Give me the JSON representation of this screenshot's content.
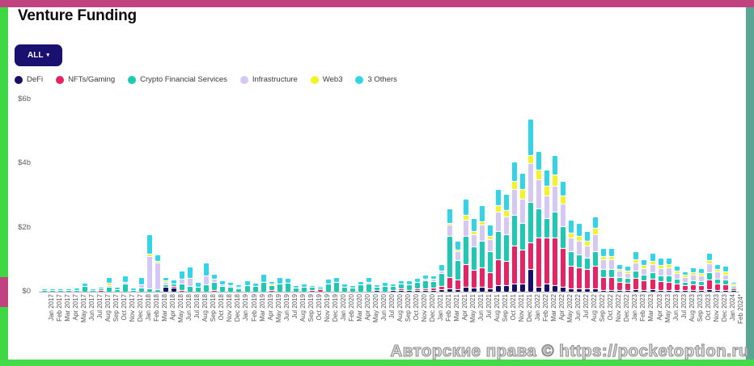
{
  "header": {
    "title": "Venture Funding"
  },
  "filter_button": {
    "label": "ALL",
    "caret": "▾"
  },
  "legend": {
    "items": [
      {
        "label": "DeFi",
        "color": "#171066"
      },
      {
        "label": "NFTs/Gaming",
        "color": "#e62365"
      },
      {
        "label": "Crypto Financial Services",
        "color": "#1ec9b3"
      },
      {
        "label": "Infrastructure",
        "color": "#d5c8f2"
      },
      {
        "label": "Web3",
        "color": "#f4f327"
      },
      {
        "label": "3 Others",
        "color": "#33d4e8"
      }
    ]
  },
  "watermark": {
    "text": "Авторские права © https://pocketoption.ru"
  },
  "frame_colors": {
    "top": "#c04380",
    "left": "#3fd743",
    "right": "#5aa593",
    "bottom": "#44da4a"
  },
  "chart_data": {
    "type": "bar",
    "stacked": true,
    "title": "Venture Funding",
    "unit": "billions USD",
    "xlabel": "",
    "ylabel": "",
    "ylim": [
      0,
      6
    ],
    "grid": false,
    "legend_position": "top",
    "y_ticks": [
      "$0",
      "$2b",
      "$4b",
      "$6b"
    ],
    "y_tick_values": [
      0,
      2,
      4,
      6
    ],
    "categories": [
      "Jan 2017",
      "Feb 2017",
      "Mar 2017",
      "Apr 2017",
      "May 2017",
      "Jun 2017",
      "Jul 2017",
      "Aug 2017",
      "Sep 2017",
      "Oct 2017",
      "Nov 2017",
      "Dec 2017",
      "Jan 2018",
      "Feb 2018",
      "Mar 2018",
      "Apr 2018",
      "May 2018",
      "Jun 2018",
      "Jul 2018",
      "Aug 2018",
      "Sep 2018",
      "Oct 2018",
      "Nov 2018",
      "Dec 2018",
      "Jan 2019",
      "Feb 2019",
      "Mar 2019",
      "Apr 2019",
      "May 2019",
      "Jun 2019",
      "Jul 2019",
      "Aug 2019",
      "Sep 2019",
      "Oct 2019",
      "Nov 2019",
      "Dec 2019",
      "Jan 2020",
      "Feb 2020",
      "Mar 2020",
      "Apr 2020",
      "May 2020",
      "Jun 2020",
      "Jul 2020",
      "Aug 2020",
      "Sep 2020",
      "Oct 2020",
      "Nov 2020",
      "Dec 2020",
      "Jan 2021",
      "Feb 2021",
      "Mar 2021",
      "Apr 2021",
      "May 2021",
      "Jun 2021",
      "Jul 2021",
      "Aug 2021",
      "Sep 2021",
      "Oct 2021",
      "Nov 2021",
      "Dec 2021",
      "Jan 2022",
      "Feb 2022",
      "Mar 2022",
      "Apr 2022",
      "May 2022",
      "Jun 2022",
      "Jul 2022",
      "Aug 2022",
      "Sep 2022",
      "Oct 2022",
      "Nov 2022",
      "Dec 2022",
      "Jan 2023",
      "Feb 2023",
      "Mar 2023",
      "Apr 2023",
      "May 2023",
      "Jun 2023",
      "Jul 2023",
      "Aug 2023",
      "Sep 2023",
      "Oct 2023",
      "Nov 2023",
      "Dec 2023",
      "Jan 2024",
      "Feb 2024*"
    ],
    "series": [
      {
        "name": "DeFi",
        "color": "#171066",
        "values": [
          0,
          0,
          0,
          0,
          0,
          0,
          0,
          0,
          0,
          0,
          0,
          0,
          0,
          0,
          0,
          0.15,
          0.12,
          0,
          0,
          0,
          0,
          0,
          0,
          0,
          0,
          0,
          0,
          0,
          0,
          0,
          0,
          0,
          0,
          0,
          0,
          0,
          0,
          0,
          0,
          0,
          0,
          0.03,
          0,
          0.05,
          0.05,
          0.05,
          0.05,
          0.05,
          0.06,
          0.08,
          0.1,
          0.08,
          0.15,
          0.12,
          0.15,
          0.1,
          0.2,
          0.2,
          0.25,
          0.25,
          0.7,
          0.15,
          0.25,
          0.2,
          0.15,
          0.1,
          0.1,
          0.1,
          0.1,
          0.05,
          0.05,
          0.05,
          0.05,
          0.08,
          0.05,
          0.08,
          0.05,
          0.05,
          0.05,
          0.03,
          0.05,
          0.03,
          0.08,
          0.05,
          0.05,
          0.05
        ]
      },
      {
        "name": "NFTs/Gaming",
        "color": "#e62365",
        "values": [
          0,
          0,
          0,
          0,
          0,
          0,
          0,
          0.06,
          0,
          0,
          0,
          0,
          0,
          0,
          0,
          0,
          0.03,
          0.05,
          0,
          0,
          0,
          0.05,
          0,
          0,
          0,
          0,
          0,
          0,
          0.03,
          0,
          0,
          0,
          0,
          0.04,
          0.08,
          0,
          0,
          0,
          0,
          0,
          0,
          0,
          0,
          0,
          0.05,
          0,
          0.03,
          0.03,
          0.06,
          0.1,
          0.35,
          0.3,
          0.7,
          0.55,
          0.6,
          0.5,
          0.8,
          0.75,
          1.2,
          1.05,
          0.85,
          1.55,
          1.45,
          1.5,
          1.2,
          0.7,
          0.65,
          0.6,
          0.7,
          0.4,
          0.4,
          0.25,
          0.22,
          0.35,
          0.3,
          0.32,
          0.28,
          0.25,
          0.2,
          0.15,
          0.18,
          0.15,
          0.3,
          0.2,
          0.18,
          0.05
        ]
      },
      {
        "name": "Crypto Financial Services",
        "color": "#1ec9b3",
        "values": [
          0.01,
          0.01,
          0.02,
          0.02,
          0.03,
          0.18,
          0.06,
          0.03,
          0.15,
          0.08,
          0.25,
          0.06,
          0.12,
          0.1,
          0.08,
          0.08,
          0.08,
          0.2,
          0.18,
          0.15,
          0.22,
          0.25,
          0.18,
          0.15,
          0.1,
          0.2,
          0.18,
          0.3,
          0.15,
          0.25,
          0.28,
          0.12,
          0.15,
          0.1,
          0.04,
          0.25,
          0.3,
          0.15,
          0.12,
          0.22,
          0.25,
          0.1,
          0.18,
          0.12,
          0.15,
          0.18,
          0.2,
          0.25,
          0.22,
          0.4,
          1.3,
          0.6,
          0.9,
          0.75,
          0.85,
          0.65,
          0.9,
          0.85,
          0.95,
          0.85,
          1.25,
          0.9,
          0.6,
          0.8,
          0.7,
          0.45,
          0.4,
          0.35,
          0.45,
          0.25,
          0.25,
          0.15,
          0.15,
          0.22,
          0.18,
          0.2,
          0.18,
          0.2,
          0.15,
          0.1,
          0.12,
          0.12,
          0.22,
          0.15,
          0.15,
          0.02
        ]
      },
      {
        "name": "Infrastructure",
        "color": "#d5c8f2",
        "values": [
          0,
          0,
          0,
          0,
          0,
          0,
          0,
          0,
          0.05,
          0,
          0.05,
          0,
          0.1,
          1.0,
          0.82,
          0.07,
          0,
          0.15,
          0.25,
          0,
          0.28,
          0.1,
          0.05,
          0.03,
          0.02,
          0,
          0,
          0,
          0,
          0,
          0,
          0,
          0,
          0,
          0,
          0,
          0,
          0,
          0,
          0,
          0.05,
          0,
          0,
          0,
          0,
          0,
          0,
          0.05,
          0.06,
          0.07,
          0.35,
          0.27,
          0.5,
          0.38,
          0.5,
          0.4,
          0.6,
          0.55,
          0.8,
          0.75,
          1.2,
          0.9,
          0.7,
          0.8,
          0.7,
          0.45,
          0.45,
          0.4,
          0.55,
          0.3,
          0.3,
          0.2,
          0.15,
          0.25,
          0.2,
          0.25,
          0.22,
          0.25,
          0.18,
          0.15,
          0.18,
          0.18,
          0.28,
          0.22,
          0.15,
          0.01
        ]
      },
      {
        "name": "Web3",
        "color": "#f4f327",
        "values": [
          0,
          0,
          0,
          0,
          0,
          0,
          0,
          0,
          0.08,
          0,
          0,
          0,
          0,
          0.08,
          0.05,
          0.05,
          0,
          0,
          0,
          0,
          0,
          0,
          0,
          0,
          0,
          0,
          0,
          0,
          0.04,
          0,
          0,
          0,
          0,
          0,
          0,
          0,
          0,
          0,
          0,
          0,
          0,
          0,
          0,
          0,
          0,
          0,
          0,
          0,
          0,
          0,
          0.05,
          0.05,
          0.15,
          0.1,
          0.1,
          0.1,
          0.2,
          0.2,
          0.25,
          0.3,
          0.25,
          0.3,
          0.3,
          0.35,
          0.25,
          0.15,
          0.15,
          0.15,
          0.2,
          0.1,
          0.1,
          0.05,
          0.08,
          0.12,
          0.1,
          0.12,
          0.1,
          0.1,
          0.08,
          0.07,
          0.08,
          0.07,
          0.1,
          0.08,
          0.1,
          0.01
        ]
      },
      {
        "name": "3 Others",
        "color": "#33d4e8",
        "values": [
          0.01,
          0.01,
          0.05,
          0.01,
          0.07,
          0.1,
          0.05,
          0.01,
          0.17,
          0.07,
          0.2,
          0.06,
          0.23,
          0.62,
          0.2,
          0.1,
          0.12,
          0.25,
          0.35,
          0.15,
          0.4,
          0.15,
          0.12,
          0.1,
          0.08,
          0.15,
          0.1,
          0.25,
          0.08,
          0.2,
          0.15,
          0.08,
          0.1,
          0.06,
          0.03,
          0.15,
          0.15,
          0.1,
          0.08,
          0.12,
          0.15,
          0.07,
          0.12,
          0.08,
          0.1,
          0.12,
          0.12,
          0.12,
          0.1,
          0.2,
          0.45,
          0.3,
          0.5,
          0.4,
          0.5,
          0.35,
          0.5,
          0.5,
          0.6,
          0.5,
          1.15,
          0.6,
          0.5,
          0.6,
          0.45,
          0.4,
          0.4,
          0.3,
          0.35,
          0.25,
          0.25,
          0.15,
          0.15,
          0.23,
          0.17,
          0.23,
          0.22,
          0.2,
          0.14,
          0.1,
          0.14,
          0.15,
          0.22,
          0.15,
          0.17,
          0.01
        ]
      }
    ]
  }
}
